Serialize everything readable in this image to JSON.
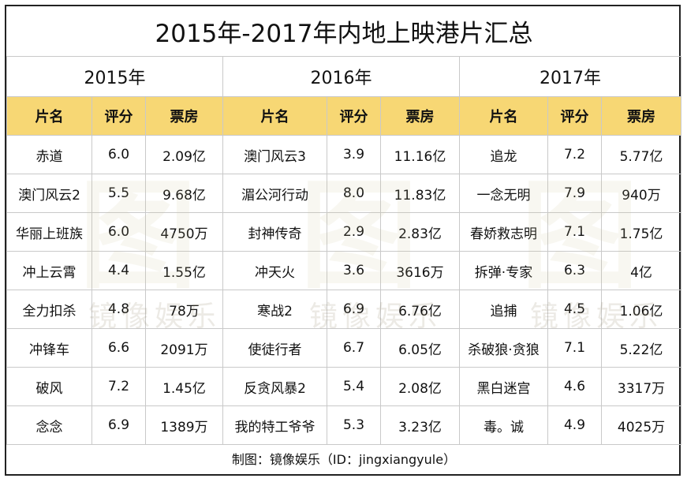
{
  "title": "2015年-2017年内地上映港片汇总",
  "years": [
    "2015年",
    "2016年",
    "2017年"
  ],
  "headers": [
    "片名",
    "评分",
    "票房"
  ],
  "rows": [
    [
      [
        "赤道",
        "6.0",
        "2.09亿"
      ],
      [
        "澳门风云3",
        "3.9",
        "11.16亿"
      ],
      [
        "追龙",
        "7.2",
        "5.77亿"
      ]
    ],
    [
      [
        "澳门风云2",
        "5.5",
        "9.68亿"
      ],
      [
        "湄公河行动",
        "8.0",
        "11.83亿"
      ],
      [
        "一念无明",
        "7.9",
        "940万"
      ]
    ],
    [
      [
        "华丽上班族",
        "6.0",
        "4750万"
      ],
      [
        "封神传奇",
        "2.9",
        "2.83亿"
      ],
      [
        "春娇救志明",
        "7.1",
        "1.75亿"
      ]
    ],
    [
      [
        "冲上云霄",
        "4.4",
        "1.55亿"
      ],
      [
        "冲天火",
        "3.6",
        "3616万"
      ],
      [
        "拆弹·专家",
        "6.3",
        "4亿"
      ]
    ],
    [
      [
        "全力扣杀",
        "4.8",
        "78万"
      ],
      [
        "寒战2",
        "6.9",
        "6.76亿"
      ],
      [
        "追捕",
        "4.5",
        "1.06亿"
      ]
    ],
    [
      [
        "冲锋车",
        "6.6",
        "2091万"
      ],
      [
        "使徒行者",
        "6.7",
        "6.05亿"
      ],
      [
        "杀破狼·贪狼",
        "7.1",
        "5.22亿"
      ]
    ],
    [
      [
        "破风",
        "7.2",
        "1.45亿"
      ],
      [
        "反贪风暴2",
        "5.4",
        "2.08亿"
      ],
      [
        "黑白迷宫",
        "4.6",
        "3317万"
      ]
    ],
    [
      [
        "念念",
        "6.9",
        "1389万"
      ],
      [
        "我的特工爷爷",
        "5.3",
        "3.23亿"
      ],
      [
        "毒。诚",
        "4.9",
        "4025万"
      ]
    ]
  ],
  "footer": "制图：镜像娱乐（ID：jingxiangyule）",
  "watermark": {
    "logo": "图",
    "text": "镜像娱乐"
  },
  "colors": {
    "header_bg": "#f7d774",
    "border": "#c9c9c9",
    "frame": "#222222"
  }
}
